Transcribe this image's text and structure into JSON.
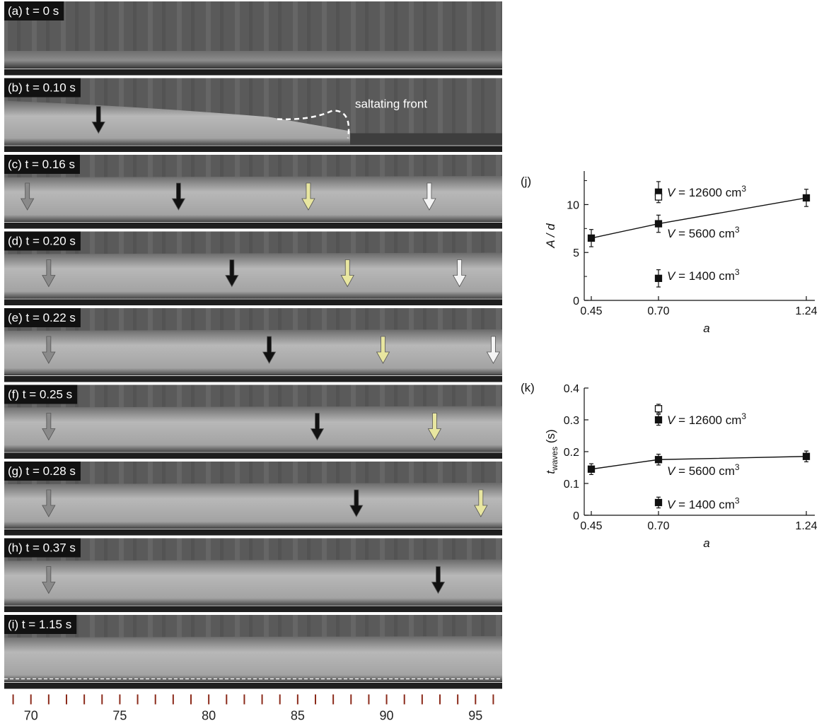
{
  "frames": [
    {
      "label": "(a) t = 0 s",
      "arrows": []
    },
    {
      "label": "(b) t = 0.10 s",
      "annotation": "saltating front",
      "arrows": [
        {
          "pos": 73.8,
          "color": "#111111"
        }
      ]
    },
    {
      "label": "(c) t = 0.16 s",
      "arrows": [
        {
          "pos": 69.8,
          "color": "#8a8a8a"
        },
        {
          "pos": 78.3,
          "color": "#111111"
        },
        {
          "pos": 85.6,
          "color": "#e8e6a0"
        },
        {
          "pos": 92.4,
          "color": "#f4f4f4"
        }
      ]
    },
    {
      "label": "(d) t = 0.20 s",
      "arrows": [
        {
          "pos": 71.0,
          "color": "#8a8a8a"
        },
        {
          "pos": 81.3,
          "color": "#111111"
        },
        {
          "pos": 87.8,
          "color": "#e8e6a0"
        },
        {
          "pos": 94.1,
          "color": "#f4f4f4"
        }
      ]
    },
    {
      "label": "(e) t = 0.22 s",
      "arrows": [
        {
          "pos": 71.0,
          "color": "#8a8a8a"
        },
        {
          "pos": 83.4,
          "color": "#111111"
        },
        {
          "pos": 89.8,
          "color": "#e8e6a0"
        },
        {
          "pos": 96.0,
          "color": "#f4f4f4"
        }
      ]
    },
    {
      "label": "(f) t = 0.25 s",
      "arrows": [
        {
          "pos": 71.0,
          "color": "#8a8a8a"
        },
        {
          "pos": 86.1,
          "color": "#111111"
        },
        {
          "pos": 92.7,
          "color": "#e8e6a0"
        }
      ]
    },
    {
      "label": "(g) t = 0.28 s",
      "arrows": [
        {
          "pos": 71.0,
          "color": "#8a8a8a"
        },
        {
          "pos": 88.3,
          "color": "#111111"
        },
        {
          "pos": 95.3,
          "color": "#e8e6a0"
        }
      ]
    },
    {
      "label": "(h) t = 0.37 s",
      "arrows": [
        {
          "pos": 71.0,
          "color": "#8a8a8a"
        },
        {
          "pos": 92.9,
          "color": "#111111"
        }
      ]
    },
    {
      "label": "(i) t = 1.15 s",
      "arrows": []
    }
  ],
  "scale": {
    "min": 68.5,
    "max": 96.5,
    "ticks": [
      "70",
      "75",
      "80",
      "85",
      "90",
      "95"
    ]
  },
  "chart_data": [
    {
      "panel": "(j)",
      "type": "scatter",
      "ylabel": "A / d",
      "xlabel": "a",
      "xticks": [
        "0.45",
        "0.70",
        "1.24"
      ],
      "yticks": [
        "0",
        "5",
        "10"
      ],
      "ylim": [
        0,
        13.5
      ],
      "line": {
        "x": [
          0.45,
          0.7,
          1.24
        ],
        "y": [
          6.5,
          8.0,
          10.7
        ],
        "err": [
          0.9,
          0.9,
          0.9
        ]
      },
      "points": [
        {
          "x": 0.7,
          "y": 11.3,
          "err": 1.1,
          "filled": true
        },
        {
          "x": 0.7,
          "y": 10.8,
          "err": 0,
          "filled": false
        },
        {
          "x": 0.7,
          "y": 2.3,
          "err": 0.9,
          "filled": true
        }
      ],
      "annotations": [
        {
          "lead": "V",
          "text": " = 12600 cm",
          "sup": "3",
          "y": 11.3
        },
        {
          "lead": "V",
          "text": " = 5600 cm",
          "sup": "3",
          "y": 7.0
        },
        {
          "lead": "V",
          "text": " = 1400 cm",
          "sup": "3",
          "y": 2.6
        }
      ]
    },
    {
      "panel": "(k)",
      "type": "scatter",
      "ylabel": "t",
      "ylabel_sub": "waves",
      "ylabel_unit": " (s)",
      "xlabel": "a",
      "xticks": [
        "0.45",
        "0.70",
        "1.24"
      ],
      "yticks": [
        "0",
        "0.1",
        "0.2",
        "0.3",
        "0.4"
      ],
      "ylim": [
        0,
        0.4
      ],
      "line": {
        "x": [
          0.45,
          0.7,
          1.24
        ],
        "y": [
          0.145,
          0.175,
          0.185
        ],
        "err": [
          0.017,
          0.017,
          0.017
        ]
      },
      "points": [
        {
          "x": 0.7,
          "y": 0.335,
          "err": 0.014,
          "filled": false
        },
        {
          "x": 0.7,
          "y": 0.3,
          "err": 0.017,
          "filled": true
        },
        {
          "x": 0.7,
          "y": 0.04,
          "err": 0.017,
          "filled": true
        }
      ],
      "annotations": [
        {
          "lead": "V",
          "text": " = 12600 cm",
          "sup": "3",
          "y": 0.3
        },
        {
          "lead": "V",
          "text": " = 5600 cm",
          "sup": "3",
          "y": 0.14
        },
        {
          "lead": "V",
          "text": " = 1400 cm",
          "sup": "3",
          "y": 0.035
        }
      ]
    }
  ]
}
